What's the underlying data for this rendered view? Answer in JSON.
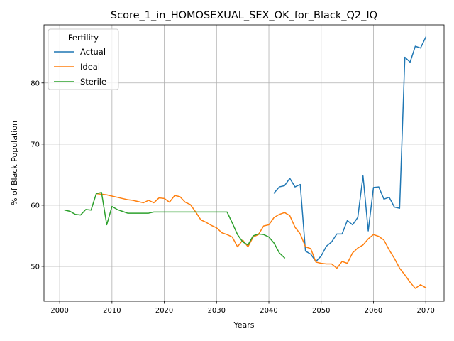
{
  "chart_data": {
    "type": "line",
    "title": "Score_1_in_HOMOSEXUAL_SEX_OK_for_Black_Q2_IQ",
    "xlabel": "Years",
    "ylabel": "% of Black Population",
    "xlim": [
      1997,
      2073.5
    ],
    "ylim": [
      44.3,
      89.5
    ],
    "xticks": [
      2000,
      2010,
      2020,
      2030,
      2040,
      2050,
      2060,
      2070
    ],
    "yticks": [
      50,
      60,
      70,
      80
    ],
    "grid": true,
    "legend": {
      "title": "Fertility",
      "placement": "top-left"
    },
    "series": [
      {
        "name": "Actual",
        "color": "#1f77b4",
        "x": [
          2041,
          2042,
          2043,
          2044,
          2045,
          2046,
          2047,
          2048,
          2049,
          2050,
          2051,
          2052,
          2053,
          2054,
          2055,
          2056,
          2057,
          2058,
          2059,
          2060,
          2061,
          2062,
          2063,
          2064,
          2065,
          2066,
          2067,
          2068,
          2069,
          2070
        ],
        "y": [
          62.0,
          63.0,
          63.2,
          64.4,
          63.0,
          63.4,
          52.5,
          52.0,
          50.8,
          51.7,
          53.3,
          54.0,
          55.3,
          55.3,
          57.5,
          56.8,
          58.0,
          64.8,
          55.8,
          62.9,
          63.0,
          61.0,
          61.3,
          59.7,
          59.5,
          84.2,
          83.4,
          86.0,
          85.7,
          87.5
        ]
      },
      {
        "name": "Ideal",
        "color": "#ff7f0e",
        "x": [
          2007,
          2008,
          2009,
          2010,
          2011,
          2012,
          2013,
          2014,
          2015,
          2016,
          2017,
          2018,
          2019,
          2020,
          2021,
          2022,
          2023,
          2024,
          2025,
          2026,
          2027,
          2028,
          2029,
          2030,
          2031,
          2032,
          2033,
          2034,
          2035,
          2036,
          2037,
          2038,
          2039,
          2040,
          2041,
          2042,
          2043,
          2044,
          2045,
          2046,
          2047,
          2048,
          2049,
          2050,
          2051,
          2052,
          2053,
          2054,
          2055,
          2056,
          2057,
          2058,
          2059,
          2060,
          2061,
          2062,
          2063,
          2064,
          2065,
          2066,
          2067,
          2068,
          2069,
          2070
        ],
        "y": [
          61.9,
          61.8,
          61.7,
          61.5,
          61.3,
          61.1,
          60.9,
          60.8,
          60.6,
          60.4,
          60.8,
          60.4,
          61.2,
          61.1,
          60.5,
          61.6,
          61.4,
          60.5,
          60.1,
          58.9,
          57.6,
          57.2,
          56.7,
          56.3,
          55.5,
          55.2,
          54.8,
          53.2,
          54.3,
          53.2,
          54.8,
          55.2,
          56.6,
          56.8,
          58.0,
          58.5,
          58.8,
          58.3,
          56.4,
          55.3,
          53.2,
          52.9,
          50.7,
          50.5,
          50.4,
          50.4,
          49.7,
          50.8,
          50.5,
          52.2,
          53.0,
          53.5,
          54.5,
          55.2,
          54.9,
          54.3,
          52.7,
          51.3,
          49.7,
          48.6,
          47.4,
          46.4,
          47.0,
          46.5
        ]
      },
      {
        "name": "Sterile",
        "color": "#2ca02c",
        "x": [
          2001,
          2002,
          2003,
          2004,
          2005,
          2006,
          2007,
          2008,
          2009,
          2010,
          2011,
          2012,
          2013,
          2014,
          2015,
          2016,
          2017,
          2018,
          2019,
          2020,
          2021,
          2022,
          2023,
          2024,
          2025,
          2026,
          2027,
          2028,
          2029,
          2030,
          2031,
          2032,
          2033,
          2034,
          2035,
          2036,
          2037,
          2038,
          2039,
          2040,
          2041,
          2042,
          2043
        ],
        "y": [
          59.2,
          59.0,
          58.5,
          58.4,
          59.3,
          59.2,
          61.9,
          62.1,
          56.8,
          59.8,
          59.3,
          59.0,
          58.7,
          58.7,
          58.7,
          58.7,
          58.7,
          58.9,
          58.9,
          58.9,
          58.9,
          58.9,
          58.9,
          58.9,
          58.9,
          58.9,
          58.9,
          58.9,
          58.9,
          58.9,
          58.9,
          58.9,
          57.1,
          55.2,
          54.0,
          53.5,
          55.0,
          55.3,
          55.2,
          54.8,
          53.8,
          52.2,
          51.4
        ]
      }
    ]
  }
}
